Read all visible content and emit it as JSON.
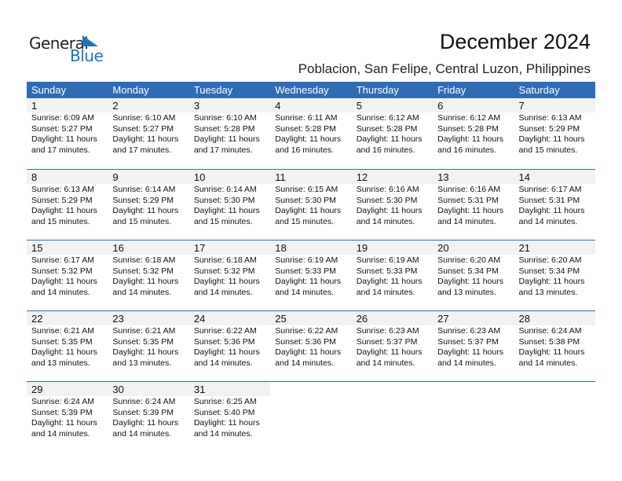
{
  "logo": {
    "line1": "General",
    "line2": "Blue"
  },
  "header": {
    "title": "December 2024",
    "location": "Poblacion, San Felipe, Central Luzon, Philippines"
  },
  "colors": {
    "accent": "#2e6db4",
    "day_band": "#f2f2f2",
    "logo_blue": "#1e73be"
  },
  "weekdays": [
    "Sunday",
    "Monday",
    "Tuesday",
    "Wednesday",
    "Thursday",
    "Friday",
    "Saturday"
  ],
  "first_weekday_index": 0,
  "days": [
    {
      "day": "1",
      "sunrise": "Sunrise: 6:09 AM",
      "sunset": "Sunset: 5:27 PM",
      "daylight": "Daylight: 11 hours",
      "minutes": "and 17 minutes."
    },
    {
      "day": "2",
      "sunrise": "Sunrise: 6:10 AM",
      "sunset": "Sunset: 5:27 PM",
      "daylight": "Daylight: 11 hours",
      "minutes": "and 17 minutes."
    },
    {
      "day": "3",
      "sunrise": "Sunrise: 6:10 AM",
      "sunset": "Sunset: 5:28 PM",
      "daylight": "Daylight: 11 hours",
      "minutes": "and 17 minutes."
    },
    {
      "day": "4",
      "sunrise": "Sunrise: 6:11 AM",
      "sunset": "Sunset: 5:28 PM",
      "daylight": "Daylight: 11 hours",
      "minutes": "and 16 minutes."
    },
    {
      "day": "5",
      "sunrise": "Sunrise: 6:12 AM",
      "sunset": "Sunset: 5:28 PM",
      "daylight": "Daylight: 11 hours",
      "minutes": "and 16 minutes."
    },
    {
      "day": "6",
      "sunrise": "Sunrise: 6:12 AM",
      "sunset": "Sunset: 5:28 PM",
      "daylight": "Daylight: 11 hours",
      "minutes": "and 16 minutes."
    },
    {
      "day": "7",
      "sunrise": "Sunrise: 6:13 AM",
      "sunset": "Sunset: 5:29 PM",
      "daylight": "Daylight: 11 hours",
      "minutes": "and 15 minutes."
    },
    {
      "day": "8",
      "sunrise": "Sunrise: 6:13 AM",
      "sunset": "Sunset: 5:29 PM",
      "daylight": "Daylight: 11 hours",
      "minutes": "and 15 minutes."
    },
    {
      "day": "9",
      "sunrise": "Sunrise: 6:14 AM",
      "sunset": "Sunset: 5:29 PM",
      "daylight": "Daylight: 11 hours",
      "minutes": "and 15 minutes."
    },
    {
      "day": "10",
      "sunrise": "Sunrise: 6:14 AM",
      "sunset": "Sunset: 5:30 PM",
      "daylight": "Daylight: 11 hours",
      "minutes": "and 15 minutes."
    },
    {
      "day": "11",
      "sunrise": "Sunrise: 6:15 AM",
      "sunset": "Sunset: 5:30 PM",
      "daylight": "Daylight: 11 hours",
      "minutes": "and 15 minutes."
    },
    {
      "day": "12",
      "sunrise": "Sunrise: 6:16 AM",
      "sunset": "Sunset: 5:30 PM",
      "daylight": "Daylight: 11 hours",
      "minutes": "and 14 minutes."
    },
    {
      "day": "13",
      "sunrise": "Sunrise: 6:16 AM",
      "sunset": "Sunset: 5:31 PM",
      "daylight": "Daylight: 11 hours",
      "minutes": "and 14 minutes."
    },
    {
      "day": "14",
      "sunrise": "Sunrise: 6:17 AM",
      "sunset": "Sunset: 5:31 PM",
      "daylight": "Daylight: 11 hours",
      "minutes": "and 14 minutes."
    },
    {
      "day": "15",
      "sunrise": "Sunrise: 6:17 AM",
      "sunset": "Sunset: 5:32 PM",
      "daylight": "Daylight: 11 hours",
      "minutes": "and 14 minutes."
    },
    {
      "day": "16",
      "sunrise": "Sunrise: 6:18 AM",
      "sunset": "Sunset: 5:32 PM",
      "daylight": "Daylight: 11 hours",
      "minutes": "and 14 minutes."
    },
    {
      "day": "17",
      "sunrise": "Sunrise: 6:18 AM",
      "sunset": "Sunset: 5:32 PM",
      "daylight": "Daylight: 11 hours",
      "minutes": "and 14 minutes."
    },
    {
      "day": "18",
      "sunrise": "Sunrise: 6:19 AM",
      "sunset": "Sunset: 5:33 PM",
      "daylight": "Daylight: 11 hours",
      "minutes": "and 14 minutes."
    },
    {
      "day": "19",
      "sunrise": "Sunrise: 6:19 AM",
      "sunset": "Sunset: 5:33 PM",
      "daylight": "Daylight: 11 hours",
      "minutes": "and 14 minutes."
    },
    {
      "day": "20",
      "sunrise": "Sunrise: 6:20 AM",
      "sunset": "Sunset: 5:34 PM",
      "daylight": "Daylight: 11 hours",
      "minutes": "and 13 minutes."
    },
    {
      "day": "21",
      "sunrise": "Sunrise: 6:20 AM",
      "sunset": "Sunset: 5:34 PM",
      "daylight": "Daylight: 11 hours",
      "minutes": "and 13 minutes."
    },
    {
      "day": "22",
      "sunrise": "Sunrise: 6:21 AM",
      "sunset": "Sunset: 5:35 PM",
      "daylight": "Daylight: 11 hours",
      "minutes": "and 13 minutes."
    },
    {
      "day": "23",
      "sunrise": "Sunrise: 6:21 AM",
      "sunset": "Sunset: 5:35 PM",
      "daylight": "Daylight: 11 hours",
      "minutes": "and 13 minutes."
    },
    {
      "day": "24",
      "sunrise": "Sunrise: 6:22 AM",
      "sunset": "Sunset: 5:36 PM",
      "daylight": "Daylight: 11 hours",
      "minutes": "and 14 minutes."
    },
    {
      "day": "25",
      "sunrise": "Sunrise: 6:22 AM",
      "sunset": "Sunset: 5:36 PM",
      "daylight": "Daylight: 11 hours",
      "minutes": "and 14 minutes."
    },
    {
      "day": "26",
      "sunrise": "Sunrise: 6:23 AM",
      "sunset": "Sunset: 5:37 PM",
      "daylight": "Daylight: 11 hours",
      "minutes": "and 14 minutes."
    },
    {
      "day": "27",
      "sunrise": "Sunrise: 6:23 AM",
      "sunset": "Sunset: 5:37 PM",
      "daylight": "Daylight: 11 hours",
      "minutes": "and 14 minutes."
    },
    {
      "day": "28",
      "sunrise": "Sunrise: 6:24 AM",
      "sunset": "Sunset: 5:38 PM",
      "daylight": "Daylight: 11 hours",
      "minutes": "and 14 minutes."
    },
    {
      "day": "29",
      "sunrise": "Sunrise: 6:24 AM",
      "sunset": "Sunset: 5:39 PM",
      "daylight": "Daylight: 11 hours",
      "minutes": "and 14 minutes."
    },
    {
      "day": "30",
      "sunrise": "Sunrise: 6:24 AM",
      "sunset": "Sunset: 5:39 PM",
      "daylight": "Daylight: 11 hours",
      "minutes": "and 14 minutes."
    },
    {
      "day": "31",
      "sunrise": "Sunrise: 6:25 AM",
      "sunset": "Sunset: 5:40 PM",
      "daylight": "Daylight: 11 hours",
      "minutes": "and 14 minutes."
    }
  ]
}
